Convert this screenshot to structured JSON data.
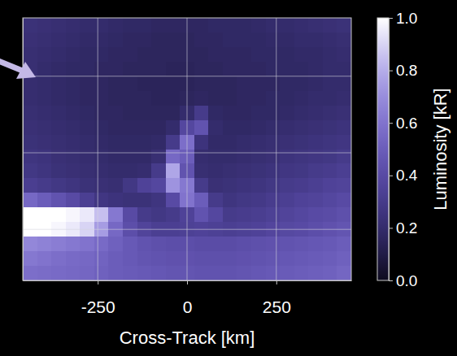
{
  "chart_data": {
    "type": "heatmap",
    "x_label": "Cross-Track [km]",
    "x": [
      -440,
      -400,
      -360,
      -320,
      -280,
      -240,
      -200,
      -160,
      -120,
      -80,
      -40,
      0,
      40,
      80,
      120,
      160,
      200,
      240,
      280,
      320,
      360,
      400,
      440
    ],
    "y": [
      3.5,
      3.3,
      3.1,
      2.9,
      2.7,
      2.5,
      2.3,
      2.1,
      1.9,
      1.7,
      1.5,
      1.3,
      1.1,
      0.9,
      0.7,
      0.5,
      0.3,
      0.1
    ],
    "values": [
      [
        0.24,
        0.23,
        0.22,
        0.21,
        0.2,
        0.2,
        0.19,
        0.18,
        0.18,
        0.17,
        0.17,
        0.17,
        0.17,
        0.18,
        0.18,
        0.18,
        0.19,
        0.2,
        0.2,
        0.21,
        0.22,
        0.23,
        0.24
      ],
      [
        0.23,
        0.22,
        0.21,
        0.2,
        0.19,
        0.19,
        0.18,
        0.17,
        0.17,
        0.16,
        0.16,
        0.16,
        0.17,
        0.17,
        0.18,
        0.18,
        0.18,
        0.19,
        0.19,
        0.2,
        0.2,
        0.21,
        0.22
      ],
      [
        0.22,
        0.21,
        0.2,
        0.19,
        0.18,
        0.18,
        0.17,
        0.17,
        0.16,
        0.16,
        0.16,
        0.16,
        0.16,
        0.17,
        0.17,
        0.17,
        0.18,
        0.18,
        0.18,
        0.19,
        0.19,
        0.2,
        0.21
      ],
      [
        0.22,
        0.2,
        0.19,
        0.18,
        0.18,
        0.17,
        0.17,
        0.16,
        0.16,
        0.16,
        0.15,
        0.15,
        0.16,
        0.16,
        0.17,
        0.17,
        0.17,
        0.18,
        0.18,
        0.18,
        0.19,
        0.2,
        0.2
      ],
      [
        0.21,
        0.2,
        0.19,
        0.18,
        0.17,
        0.17,
        0.16,
        0.16,
        0.15,
        0.15,
        0.15,
        0.15,
        0.16,
        0.16,
        0.16,
        0.17,
        0.17,
        0.17,
        0.18,
        0.18,
        0.19,
        0.2,
        0.2
      ],
      [
        0.21,
        0.2,
        0.19,
        0.18,
        0.17,
        0.17,
        0.16,
        0.16,
        0.16,
        0.15,
        0.15,
        0.16,
        0.17,
        0.16,
        0.16,
        0.17,
        0.17,
        0.18,
        0.18,
        0.19,
        0.2,
        0.2,
        0.21
      ],
      [
        0.22,
        0.21,
        0.2,
        0.19,
        0.18,
        0.17,
        0.17,
        0.16,
        0.16,
        0.16,
        0.16,
        0.2,
        0.3,
        0.18,
        0.17,
        0.17,
        0.18,
        0.18,
        0.19,
        0.2,
        0.21,
        0.22,
        0.23
      ],
      [
        0.23,
        0.22,
        0.21,
        0.2,
        0.19,
        0.18,
        0.17,
        0.17,
        0.17,
        0.17,
        0.2,
        0.38,
        0.45,
        0.2,
        0.18,
        0.18,
        0.19,
        0.2,
        0.21,
        0.22,
        0.23,
        0.24,
        0.25
      ],
      [
        0.24,
        0.23,
        0.22,
        0.21,
        0.2,
        0.19,
        0.18,
        0.18,
        0.18,
        0.19,
        0.3,
        0.58,
        0.25,
        0.19,
        0.19,
        0.2,
        0.21,
        0.22,
        0.23,
        0.24,
        0.25,
        0.26,
        0.27
      ],
      [
        0.26,
        0.25,
        0.23,
        0.22,
        0.21,
        0.2,
        0.19,
        0.19,
        0.19,
        0.22,
        0.55,
        0.5,
        0.21,
        0.2,
        0.2,
        0.21,
        0.22,
        0.23,
        0.25,
        0.26,
        0.27,
        0.28,
        0.3
      ],
      [
        0.28,
        0.26,
        0.24,
        0.23,
        0.22,
        0.21,
        0.2,
        0.2,
        0.21,
        0.3,
        0.78,
        0.45,
        0.22,
        0.21,
        0.22,
        0.23,
        0.24,
        0.25,
        0.27,
        0.28,
        0.3,
        0.31,
        0.33
      ],
      [
        0.32,
        0.3,
        0.28,
        0.26,
        0.24,
        0.23,
        0.22,
        0.28,
        0.35,
        0.38,
        0.72,
        0.62,
        0.3,
        0.23,
        0.24,
        0.25,
        0.26,
        0.28,
        0.3,
        0.31,
        0.33,
        0.35,
        0.36
      ],
      [
        0.55,
        0.5,
        0.45,
        0.4,
        0.33,
        0.27,
        0.25,
        0.24,
        0.24,
        0.26,
        0.4,
        0.6,
        0.5,
        0.3,
        0.26,
        0.28,
        0.29,
        0.31,
        0.33,
        0.35,
        0.36,
        0.38,
        0.4
      ],
      [
        1.0,
        1.0,
        1.0,
        0.98,
        0.95,
        0.85,
        0.62,
        0.4,
        0.3,
        0.28,
        0.3,
        0.35,
        0.45,
        0.38,
        0.3,
        0.31,
        0.32,
        0.34,
        0.36,
        0.38,
        0.4,
        0.41,
        0.43
      ],
      [
        1.0,
        1.0,
        0.98,
        0.95,
        0.9,
        0.75,
        0.55,
        0.42,
        0.36,
        0.33,
        0.33,
        0.34,
        0.35,
        0.34,
        0.33,
        0.34,
        0.35,
        0.37,
        0.39,
        0.4,
        0.42,
        0.44,
        0.46
      ],
      [
        0.68,
        0.66,
        0.64,
        0.62,
        0.6,
        0.56,
        0.52,
        0.48,
        0.45,
        0.43,
        0.42,
        0.42,
        0.41,
        0.41,
        0.41,
        0.42,
        0.43,
        0.44,
        0.45,
        0.46,
        0.47,
        0.48,
        0.5
      ],
      [
        0.62,
        0.6,
        0.58,
        0.56,
        0.55,
        0.53,
        0.5,
        0.48,
        0.46,
        0.45,
        0.44,
        0.44,
        0.43,
        0.43,
        0.43,
        0.44,
        0.45,
        0.46,
        0.47,
        0.48,
        0.49,
        0.5,
        0.52
      ],
      [
        0.58,
        0.57,
        0.56,
        0.55,
        0.54,
        0.52,
        0.5,
        0.49,
        0.48,
        0.47,
        0.46,
        0.46,
        0.45,
        0.45,
        0.45,
        0.46,
        0.47,
        0.48,
        0.49,
        0.5,
        0.51,
        0.52,
        0.54
      ]
    ],
    "xlim": [
      -460,
      460
    ],
    "xticks": [
      -250,
      0,
      250
    ],
    "ylim": [
      0,
      3.6
    ],
    "yticks": [
      0.7,
      1.75,
      2.8
    ],
    "grid": true,
    "tick_labels": "x",
    "colorbar": {
      "label": "Luminosity [kR]",
      "range": [
        0,
        1
      ],
      "ticks": [
        {
          "value": 0,
          "label": "0.0"
        },
        0.2,
        0.4,
        0.6,
        0.8,
        {
          "value": 1,
          "label": "1.0"
        }
      ]
    }
  }
}
